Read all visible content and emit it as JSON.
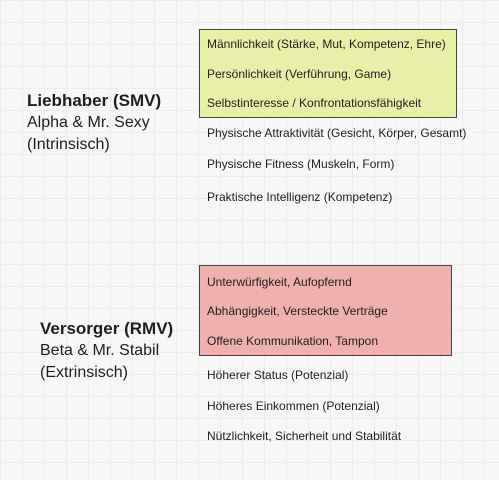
{
  "groups": [
    {
      "title": "Liebhaber (SMV)",
      "subtitle1": "Alpha & Mr. Sexy",
      "subtitle2": "(Intrinsisch)",
      "highlight_color": "#e7f0a6",
      "highlighted_items": [
        "Männlichkeit (Stärke, Mut, Kompetenz, Ehre)",
        "Persönlichkeit (Verführung, Game)",
        "Selbstinteresse / Konfrontationsfähigkeit"
      ],
      "items": [
        "Physische Attraktivität (Gesicht, Körper, Gesamt)",
        "Physische Fitness (Muskeln, Form)",
        "Praktische Intelligenz (Kompetenz)"
      ]
    },
    {
      "title": "Versorger (RMV)",
      "subtitle1": "Beta & Mr. Stabil",
      "subtitle2": "(Extrinsisch)",
      "highlight_color": "#efb1ad",
      "highlighted_items": [
        "Unterwürfigkeit, Aufopfernd",
        "Abhängigkeit, Versteckte Verträge",
        "Offene Kommunikation, Tampon"
      ],
      "items": [
        "Höherer Status (Potenzial)",
        "Höheres Einkommen (Potenzial)",
        "Nützlichkeit, Sicherheit und Stabilität"
      ]
    }
  ]
}
